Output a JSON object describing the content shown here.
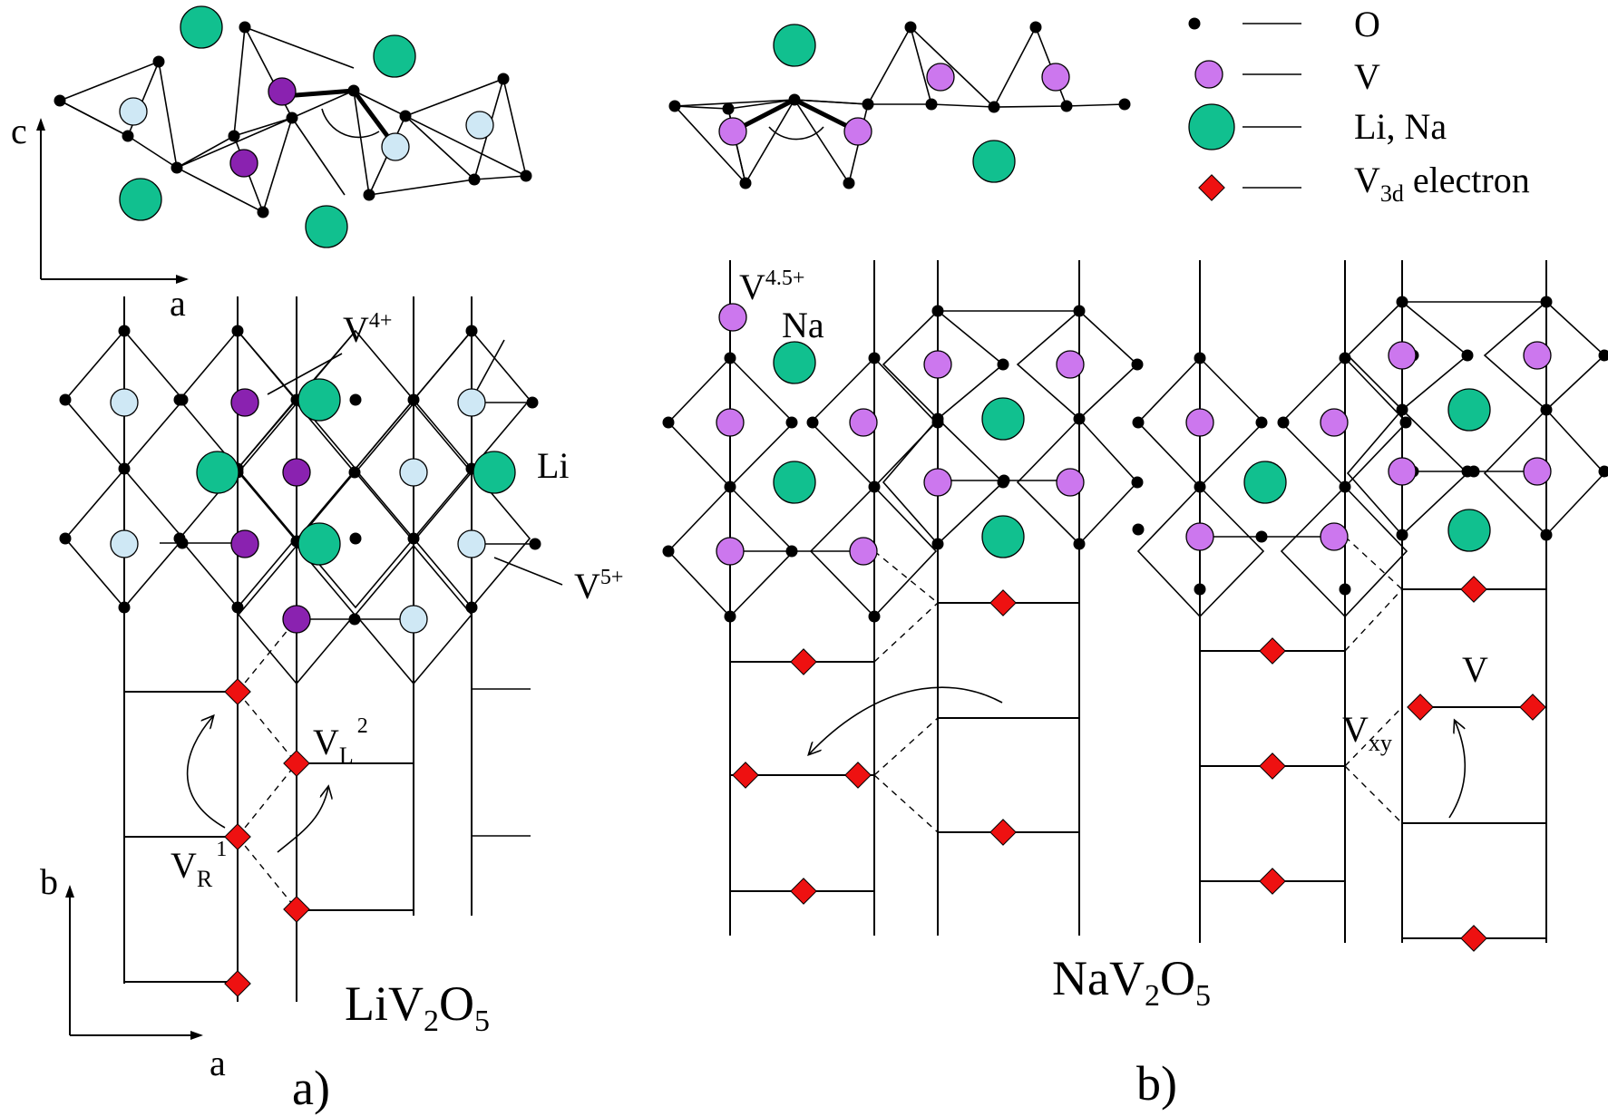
{
  "colors": {
    "oxygen": "#000000",
    "vanadium": "#cc77ee",
    "vanadium_4plus": "#8a22b0",
    "vanadium_5plus": "#cfe8f5",
    "alkali": "#11c08f",
    "electron": "#ee1111",
    "line": "#000000"
  },
  "legend": {
    "items": [
      {
        "label": "O"
      },
      {
        "label": "V"
      },
      {
        "label": "Li, Na"
      },
      {
        "label_main": "V",
        "label_sub": "3d",
        "label_rest": " electron"
      }
    ]
  },
  "panel_a": {
    "axis_top": {
      "vertical": "c",
      "horizontal": "a"
    },
    "axis_bottom": {
      "vertical": "b",
      "horizontal": "a"
    },
    "labels": {
      "v4": {
        "main": "V",
        "sup": "4+"
      },
      "v5": {
        "main": "V",
        "sup": "5+"
      },
      "li": "Li",
      "vl": {
        "main": "V",
        "sub": "L",
        "sup": "2"
      },
      "vr": {
        "main": "V",
        "sub": "R",
        "sup": "1"
      }
    },
    "formula": {
      "p1": "LiV",
      "s1": "2",
      "p2": "O",
      "s2": "5"
    },
    "caption": "a)"
  },
  "panel_b": {
    "labels": {
      "v45": {
        "main": "V",
        "sup": "4.5+"
      },
      "na": "Na",
      "v": "V",
      "vxy": {
        "main": "V",
        "sub": "xy"
      }
    },
    "formula": {
      "p1": "NaV",
      "s1": "2",
      "p2": "O",
      "s2": "5"
    },
    "caption": "b)"
  }
}
